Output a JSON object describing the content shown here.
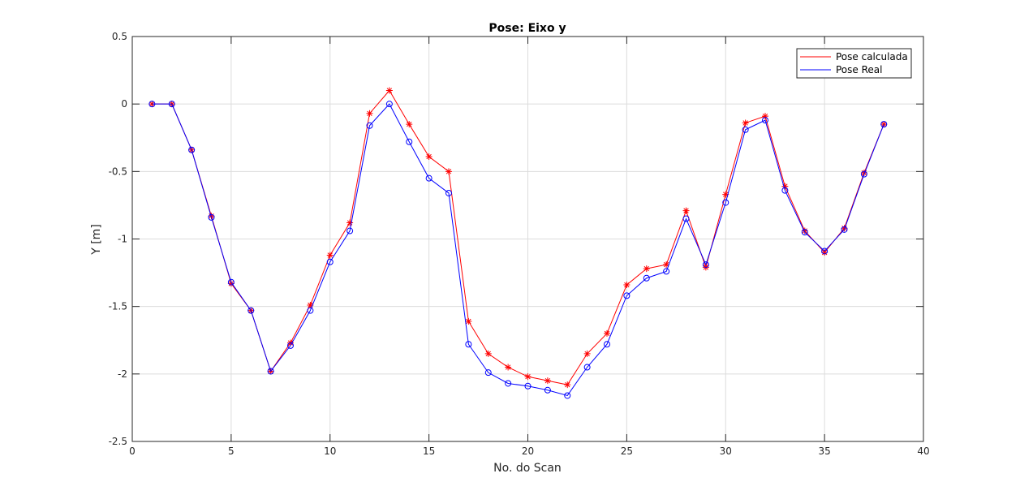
{
  "chart_data": {
    "type": "line",
    "title": "Pose: Eixo y",
    "xlabel": "No. do Scan",
    "ylabel": "Y [m]",
    "xlim": [
      0,
      40
    ],
    "ylim": [
      -2.5,
      0.5
    ],
    "xticks": [
      0,
      5,
      10,
      15,
      20,
      25,
      30,
      35,
      40
    ],
    "yticks": [
      -2.5,
      -2,
      -1.5,
      -1,
      -0.5,
      0,
      0.5
    ],
    "xtick_labels": [
      "0",
      "5",
      "10",
      "15",
      "20",
      "25",
      "30",
      "35",
      "40"
    ],
    "ytick_labels": [
      "-2.5",
      "-2",
      "-1.5",
      "-1",
      "-0.5",
      "0",
      "0.5"
    ],
    "grid": true,
    "legend_position": "top-right",
    "x": [
      1,
      2,
      3,
      4,
      5,
      6,
      7,
      8,
      9,
      10,
      11,
      12,
      13,
      14,
      15,
      16,
      17,
      18,
      19,
      20,
      21,
      22,
      23,
      24,
      25,
      26,
      27,
      28,
      29,
      30,
      31,
      32,
      33,
      34,
      35,
      36,
      37,
      38
    ],
    "series": [
      {
        "name": "Pose calculada",
        "color": "#ff0000",
        "marker": "asterisk",
        "values": [
          0,
          0,
          -0.34,
          -0.83,
          -1.33,
          -1.53,
          -1.98,
          -1.77,
          -1.49,
          -1.12,
          -0.88,
          -0.07,
          0.1,
          -0.15,
          -0.39,
          -0.5,
          -1.61,
          -1.85,
          -1.95,
          -2.02,
          -2.05,
          -2.08,
          -1.85,
          -1.7,
          -1.34,
          -1.22,
          -1.19,
          -0.79,
          -1.21,
          -0.67,
          -0.14,
          -0.09,
          -0.61,
          -0.94,
          -1.1,
          -0.92,
          -0.51,
          -0.15
        ]
      },
      {
        "name": "Pose Real",
        "color": "#0000ff",
        "marker": "circle",
        "values": [
          0,
          0,
          -0.34,
          -0.84,
          -1.32,
          -1.53,
          -1.98,
          -1.79,
          -1.53,
          -1.17,
          -0.94,
          -0.16,
          0,
          -0.28,
          -0.55,
          -0.66,
          -1.78,
          -1.99,
          -2.07,
          -2.09,
          -2.12,
          -2.16,
          -1.95,
          -1.78,
          -1.42,
          -1.29,
          -1.24,
          -0.85,
          -1.19,
          -0.73,
          -0.19,
          -0.12,
          -0.64,
          -0.95,
          -1.09,
          -0.93,
          -0.52,
          -0.15
        ]
      }
    ]
  }
}
